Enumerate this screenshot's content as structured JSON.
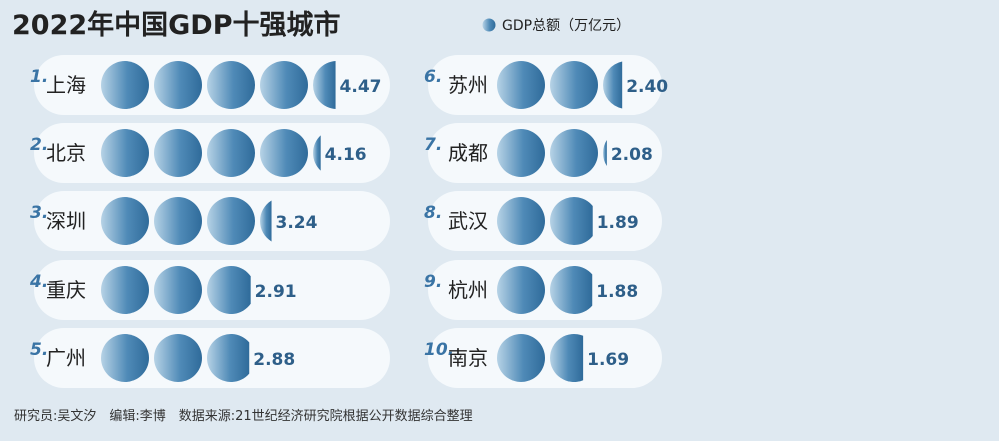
{
  "chart_data": {
    "type": "pictogram",
    "title": "2022年中国GDP十强城市",
    "legend_label": "GDP总额（万亿元）",
    "unit": "万亿元",
    "categories": [
      "上海",
      "北京",
      "深圳",
      "重庆",
      "广州",
      "苏州",
      "成都",
      "武汉",
      "杭州",
      "南京"
    ],
    "ranks": [
      "1.",
      "2.",
      "3.",
      "4.",
      "5.",
      "6.",
      "7.",
      "8.",
      "9.",
      "10."
    ],
    "values": [
      4.47,
      4.16,
      3.24,
      2.91,
      2.88,
      2.4,
      2.08,
      1.89,
      1.88,
      1.69
    ],
    "value_labels": [
      "4.47",
      "4.16",
      "3.24",
      "2.91",
      "2.88",
      "2.40",
      "2.08",
      "1.89",
      "1.88",
      "1.69"
    ],
    "colors": {
      "bubble_dark": "#2f6b9a",
      "bubble_light": "#b7d3e6",
      "pill": "#f5f9fc",
      "rank": "#3a74a5",
      "value": "#2e5f89"
    }
  },
  "footer": "研究员:吴文汐　编辑:李博　数据来源:21世纪经济研究院根据公开数据综合整理"
}
